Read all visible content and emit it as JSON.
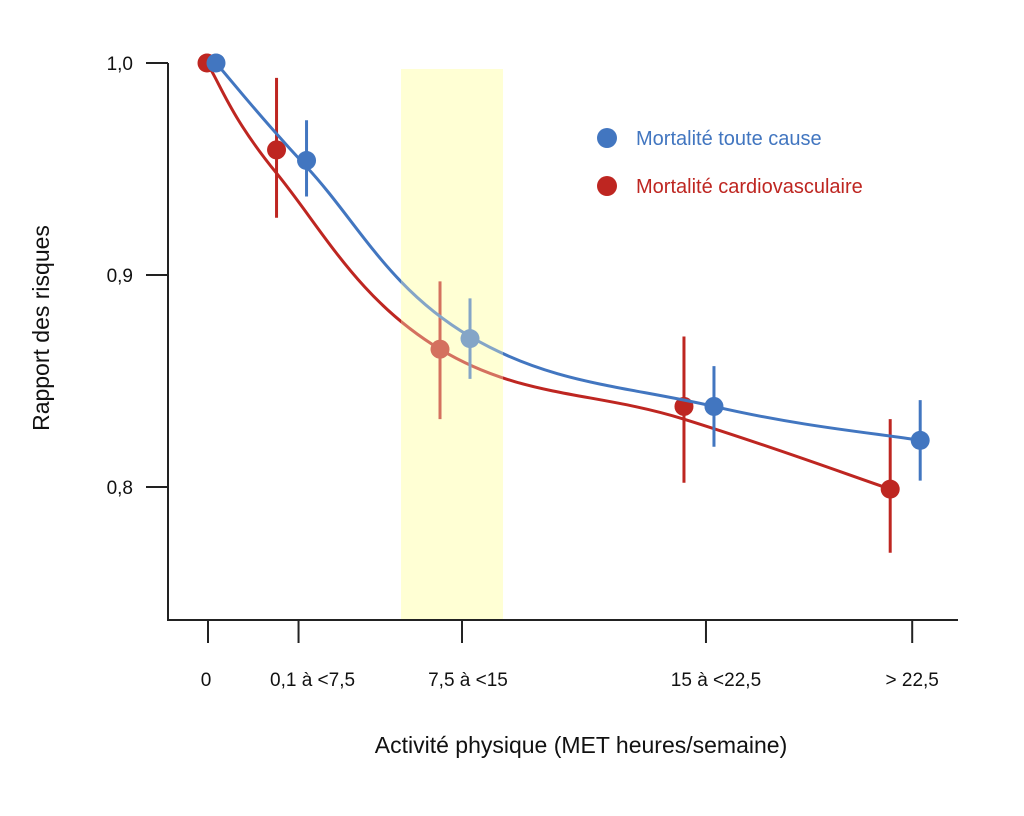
{
  "chart_data": {
    "type": "line",
    "title": "",
    "xlabel": "Activité physique (MET heures/semaine)",
    "ylabel": "Rapport des risques",
    "categories": [
      "0",
      "0,1 à <7,5",
      "7,5 à <15",
      "15 à <22,5",
      "> 22,5"
    ],
    "x": [
      0,
      3.6,
      10.1,
      19.8,
      28
    ],
    "ylim": [
      0.74,
      1.0
    ],
    "yticks": [
      {
        "value": 1.0,
        "label": "1,0"
      },
      {
        "value": 0.9,
        "label": "0,9"
      },
      {
        "value": 0.8,
        "label": "0,8"
      }
    ],
    "grid": false,
    "legend_position": "top-right",
    "highlight_band": {
      "category": "7,5 à <15",
      "color": "#FFFFD4",
      "label": ""
    },
    "series": [
      {
        "name": "Mortalité toute cause",
        "color": "#4276C0",
        "values": [
          1.0,
          0.954,
          0.87,
          0.838,
          0.822
        ],
        "ci_low": [
          1.0,
          0.937,
          0.851,
          0.819,
          0.803
        ],
        "ci_high": [
          1.0,
          0.973,
          0.889,
          0.857,
          0.841
        ],
        "curve": [
          1.0,
          0.951,
          0.871,
          0.838,
          0.822
        ]
      },
      {
        "name": "Mortalité cardiovasculaire",
        "color": "#BE2621",
        "values": [
          1.0,
          0.959,
          0.865,
          0.838,
          0.799
        ],
        "ci_low": [
          1.0,
          0.927,
          0.832,
          0.802,
          0.769
        ],
        "ci_high": [
          1.0,
          0.993,
          0.897,
          0.871,
          0.832
        ],
        "curve": [
          1.0,
          0.948,
          0.865,
          0.832,
          0.799
        ]
      }
    ]
  }
}
